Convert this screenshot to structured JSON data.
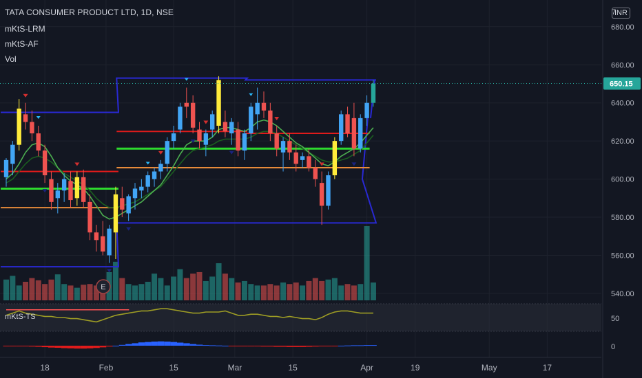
{
  "legend": {
    "title": "TATA CONSUMER PRODUCT LTD, 1D, NSE",
    "indicators": [
      "mKtS-LRM",
      "mKtS-AF",
      "Vol"
    ],
    "subpane_label": "mKtS-TS"
  },
  "currency": "INR",
  "colors": {
    "background": "#131722",
    "grid": "#1e222d",
    "up": "#26a69a",
    "down": "#ef5350",
    "highlight_candle": "#ffeb3b",
    "blue_candle": "#42a5f5",
    "last_price": "#26a69a",
    "channel": "#2929d4",
    "ma_fast": "#4caf50",
    "ma_slow": "#1b5e20",
    "level_red": "#e01b1b",
    "level_green": "#2edb2e",
    "level_orange": "#e88b3a",
    "ts_line": "#9e9d24"
  },
  "chart_data": {
    "type": "candlestick",
    "title": "TATA CONSUMER PRODUCT LTD, 1D, NSE",
    "price_axis": {
      "ticks": [
        540,
        560,
        580,
        600,
        620,
        640,
        660,
        680
      ],
      "tick_labels": [
        "540.00",
        "560.00",
        "580.00",
        "600.00",
        "620.00",
        "640.00",
        "660.00",
        "680.00"
      ],
      "ylim": [
        536,
        694
      ],
      "last_price": 650.15,
      "last_price_label": "650.15",
      "top_partial_label": "7"
    },
    "time_axis": {
      "labels": [
        "18",
        "Feb",
        "15",
        "Mar",
        "15",
        "Apr",
        "19",
        "May",
        "17"
      ],
      "label_positions_index": [
        6,
        15.5,
        26,
        35.5,
        44.5,
        56,
        63.5,
        75,
        84
      ]
    },
    "candles": [
      {
        "o": 601,
        "h": 611,
        "l": 596,
        "c": 610,
        "color": "blue"
      },
      {
        "o": 608,
        "h": 620,
        "l": 602,
        "c": 618,
        "color": "blue"
      },
      {
        "o": 618,
        "h": 642,
        "l": 615,
        "c": 637,
        "color": "yellow"
      },
      {
        "o": 634,
        "h": 640,
        "l": 626,
        "c": 630,
        "color": "red"
      },
      {
        "o": 630,
        "h": 636,
        "l": 620,
        "c": 624,
        "color": "red"
      },
      {
        "o": 624,
        "h": 628,
        "l": 612,
        "c": 615,
        "color": "red"
      },
      {
        "o": 615,
        "h": 618,
        "l": 598,
        "c": 602,
        "color": "red"
      },
      {
        "o": 600,
        "h": 604,
        "l": 584,
        "c": 588,
        "color": "red"
      },
      {
        "o": 590,
        "h": 598,
        "l": 582,
        "c": 594,
        "color": "blue"
      },
      {
        "o": 594,
        "h": 603,
        "l": 588,
        "c": 600,
        "color": "blue"
      },
      {
        "o": 599,
        "h": 604,
        "l": 585,
        "c": 589,
        "color": "red"
      },
      {
        "o": 590,
        "h": 604,
        "l": 586,
        "c": 601,
        "color": "yellow"
      },
      {
        "o": 601,
        "h": 605,
        "l": 585,
        "c": 588,
        "color": "red"
      },
      {
        "o": 588,
        "h": 592,
        "l": 568,
        "c": 572,
        "color": "red"
      },
      {
        "o": 572,
        "h": 576,
        "l": 562,
        "c": 568,
        "color": "red"
      },
      {
        "o": 570,
        "h": 578,
        "l": 560,
        "c": 562,
        "color": "red"
      },
      {
        "o": 560,
        "h": 576,
        "l": 556,
        "c": 574,
        "color": "blue"
      },
      {
        "o": 572,
        "h": 596,
        "l": 558,
        "c": 592,
        "color": "yellow"
      },
      {
        "o": 590,
        "h": 596,
        "l": 580,
        "c": 584,
        "color": "red"
      },
      {
        "o": 582,
        "h": 592,
        "l": 578,
        "c": 591,
        "color": "blue"
      },
      {
        "o": 590,
        "h": 598,
        "l": 584,
        "c": 595,
        "color": "blue"
      },
      {
        "o": 594,
        "h": 600,
        "l": 590,
        "c": 596,
        "color": "blue"
      },
      {
        "o": 596,
        "h": 604,
        "l": 593,
        "c": 602,
        "color": "blue"
      },
      {
        "o": 600,
        "h": 606,
        "l": 596,
        "c": 604,
        "color": "blue"
      },
      {
        "o": 604,
        "h": 610,
        "l": 600,
        "c": 608,
        "color": "blue"
      },
      {
        "o": 608,
        "h": 622,
        "l": 604,
        "c": 620,
        "color": "blue"
      },
      {
        "o": 620,
        "h": 628,
        "l": 616,
        "c": 624,
        "color": "blue"
      },
      {
        "o": 626,
        "h": 640,
        "l": 624,
        "c": 638,
        "color": "blue"
      },
      {
        "o": 640,
        "h": 648,
        "l": 632,
        "c": 638,
        "color": "red"
      },
      {
        "o": 640,
        "h": 644,
        "l": 624,
        "c": 627,
        "color": "red"
      },
      {
        "o": 626,
        "h": 630,
        "l": 616,
        "c": 620,
        "color": "red"
      },
      {
        "o": 618,
        "h": 626,
        "l": 612,
        "c": 624,
        "color": "blue"
      },
      {
        "o": 626,
        "h": 636,
        "l": 622,
        "c": 634,
        "color": "blue"
      },
      {
        "o": 628,
        "h": 654,
        "l": 624,
        "c": 652,
        "color": "yellow"
      },
      {
        "o": 630,
        "h": 636,
        "l": 622,
        "c": 625,
        "color": "red"
      },
      {
        "o": 624,
        "h": 632,
        "l": 618,
        "c": 630,
        "color": "blue"
      },
      {
        "o": 626,
        "h": 630,
        "l": 612,
        "c": 615,
        "color": "red"
      },
      {
        "o": 615,
        "h": 626,
        "l": 610,
        "c": 624,
        "color": "blue"
      },
      {
        "o": 624,
        "h": 640,
        "l": 620,
        "c": 638,
        "color": "blue"
      },
      {
        "o": 634,
        "h": 648,
        "l": 626,
        "c": 640,
        "color": "blue"
      },
      {
        "o": 640,
        "h": 646,
        "l": 632,
        "c": 636,
        "color": "red"
      },
      {
        "o": 636,
        "h": 640,
        "l": 620,
        "c": 624,
        "color": "red"
      },
      {
        "o": 624,
        "h": 628,
        "l": 612,
        "c": 616,
        "color": "red"
      },
      {
        "o": 614,
        "h": 622,
        "l": 604,
        "c": 620,
        "color": "blue"
      },
      {
        "o": 620,
        "h": 624,
        "l": 610,
        "c": 614,
        "color": "red"
      },
      {
        "o": 614,
        "h": 618,
        "l": 604,
        "c": 608,
        "color": "red"
      },
      {
        "o": 610,
        "h": 614,
        "l": 606,
        "c": 612,
        "color": "blue"
      },
      {
        "o": 612,
        "h": 616,
        "l": 604,
        "c": 606,
        "color": "red"
      },
      {
        "o": 606,
        "h": 610,
        "l": 596,
        "c": 600,
        "color": "red"
      },
      {
        "o": 598,
        "h": 604,
        "l": 576,
        "c": 586,
        "color": "red"
      },
      {
        "o": 586,
        "h": 604,
        "l": 584,
        "c": 602,
        "color": "blue"
      },
      {
        "o": 602,
        "h": 622,
        "l": 600,
        "c": 620,
        "color": "yellow"
      },
      {
        "o": 620,
        "h": 636,
        "l": 618,
        "c": 634,
        "color": "blue"
      },
      {
        "o": 634,
        "h": 638,
        "l": 622,
        "c": 624,
        "color": "red"
      },
      {
        "o": 632,
        "h": 640,
        "l": 612,
        "c": 616,
        "color": "red"
      },
      {
        "o": 616,
        "h": 634,
        "l": 614,
        "c": 632,
        "color": "blue"
      },
      {
        "o": 632,
        "h": 644,
        "l": 628,
        "c": 640,
        "color": "blue"
      },
      {
        "o": 640,
        "h": 652,
        "l": 638,
        "c": 650.15,
        "color": "up"
      }
    ],
    "volume_relative": [
      0.28,
      0.33,
      0.2,
      0.25,
      0.3,
      0.27,
      0.22,
      0.28,
      0.35,
      0.22,
      0.2,
      0.17,
      0.21,
      0.22,
      0.2,
      0.25,
      0.38,
      0.52,
      0.3,
      0.22,
      0.2,
      0.22,
      0.25,
      0.36,
      0.3,
      0.2,
      0.32,
      0.42,
      0.3,
      0.36,
      0.38,
      0.26,
      0.32,
      0.5,
      0.36,
      0.3,
      0.24,
      0.26,
      0.22,
      0.2,
      0.2,
      0.22,
      0.2,
      0.24,
      0.22,
      0.24,
      0.2,
      0.26,
      0.3,
      0.26,
      0.28,
      0.3,
      0.2,
      0.22,
      0.2,
      0.22,
      1.0,
      0.24
    ],
    "ma_fast": [
      600,
      603,
      608,
      614,
      618,
      619,
      617,
      612,
      606,
      602,
      599,
      597,
      595,
      591,
      586,
      581,
      579,
      580,
      582,
      584,
      586,
      588,
      591,
      594,
      597,
      602,
      607,
      613,
      618,
      620,
      620,
      620,
      622,
      626,
      627,
      627,
      626,
      625,
      627,
      630,
      631,
      630,
      628,
      625,
      622,
      619,
      617,
      614,
      611,
      608,
      607,
      609,
      612,
      614,
      616,
      619,
      623,
      627
    ],
    "ma_slow": [
      598,
      600,
      604,
      608,
      611,
      612,
      611,
      609,
      606,
      603,
      601,
      599,
      597,
      594,
      590,
      587,
      585,
      585,
      586,
      587,
      588,
      590,
      592,
      594,
      596,
      600,
      604,
      608,
      612,
      615,
      616,
      617,
      618,
      620,
      621,
      621,
      621,
      621,
      622,
      624,
      625,
      625,
      624,
      622,
      620,
      618,
      616,
      614,
      612,
      610,
      609,
      609,
      610,
      611,
      613,
      615,
      619,
      623
    ],
    "channel_segments": [
      {
        "from": 0,
        "to": 17,
        "upper": 635,
        "lower": 554
      },
      {
        "from": 18,
        "to": 37,
        "upper": 653,
        "lower": 577
      },
      {
        "from": 38,
        "to": 57,
        "upper": 652,
        "lower": 577
      }
    ],
    "level_lines": [
      {
        "from": 0,
        "to": 17,
        "price": 604,
        "color": "red"
      },
      {
        "from": 0,
        "to": 17,
        "price": 595,
        "color": "green"
      },
      {
        "from": 0,
        "to": 17,
        "price": 585,
        "color": "orange"
      },
      {
        "from": 18,
        "to": 37,
        "price": 625,
        "color": "red"
      },
      {
        "from": 18,
        "to": 37,
        "price": 616,
        "color": "green"
      },
      {
        "from": 18,
        "to": 37,
        "price": 606,
        "color": "orange"
      },
      {
        "from": 38,
        "to": 56,
        "price": 624,
        "color": "red"
      },
      {
        "from": 38,
        "to": 56,
        "price": 616,
        "color": "green"
      },
      {
        "from": 38,
        "to": 56,
        "price": 606,
        "color": "orange"
      }
    ],
    "markers_above": [
      3,
      11,
      24,
      31,
      42,
      49
    ],
    "markers_below": [
      6,
      16,
      19,
      29,
      35,
      54
    ],
    "blue_markers": [
      5,
      22,
      28,
      38
    ],
    "earnings_marker": {
      "index": 14,
      "label": "E"
    },
    "ts_pane": {
      "axis_label": "50",
      "values": [
        52,
        54,
        56,
        54,
        53,
        52,
        51,
        51,
        50,
        50,
        49,
        49,
        48,
        47,
        46,
        48,
        50,
        52,
        53,
        54,
        55,
        56,
        56,
        57,
        58,
        58,
        57,
        56,
        55,
        54,
        54,
        55,
        55,
        55,
        56,
        54,
        52,
        52,
        53,
        53,
        52,
        51,
        51,
        50,
        51,
        50,
        49,
        49,
        48,
        50,
        53,
        55,
        56,
        56,
        55,
        54,
        54,
        54
      ],
      "highlight_range": [
        0,
        18
      ]
    },
    "osc_pane": {
      "axis_label": "0",
      "values": [
        -1,
        -2,
        -2,
        -3,
        -4,
        -5,
        -7,
        -9,
        -10,
        -12,
        -13,
        -14,
        -14,
        -13,
        -11,
        -8,
        -4,
        0,
        4,
        8,
        12,
        16,
        18,
        20,
        21,
        20,
        18,
        15,
        12,
        8,
        5,
        3,
        2,
        1,
        0,
        -1,
        -1,
        -2,
        -3,
        -3,
        -4,
        -4,
        -5,
        -5,
        -6,
        -6,
        -6,
        -5,
        -4,
        -3,
        -2,
        -1,
        0,
        1,
        2,
        2,
        3,
        3
      ]
    }
  }
}
